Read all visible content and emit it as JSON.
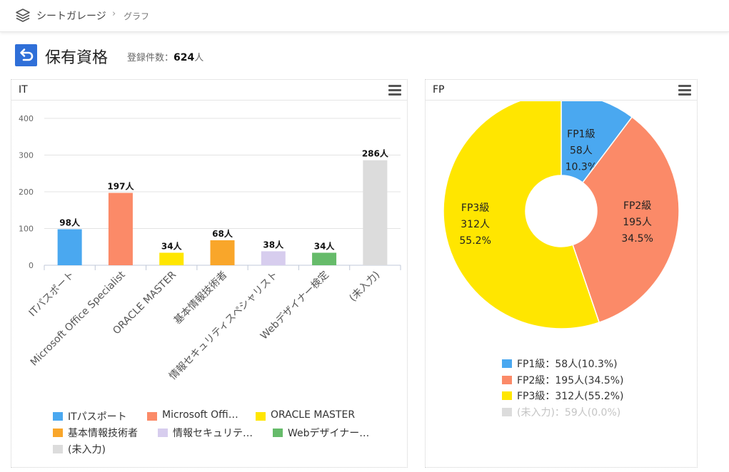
{
  "header": {
    "app_name": "シートガレージ",
    "separator": "›",
    "breadcrumb_current": "グラフ"
  },
  "page": {
    "title": "保有資格",
    "count_label": "登録件数：",
    "count_value": "624",
    "count_unit": "人"
  },
  "panels": {
    "it": {
      "title": "IT"
    },
    "fp": {
      "title": "FP"
    }
  },
  "colors": {
    "accent": "#2f6fd8",
    "blue": "#4aa8f0",
    "salmon": "#fb8a68",
    "yellow": "#ffe600",
    "orange": "#f9a62a",
    "lavender": "#d7cdee",
    "green": "#66bb6a",
    "gray": "#dcdcdc"
  },
  "chart_data": [
    {
      "type": "bar",
      "categories": [
        "ITパスポート",
        "Microsoft Office Specialist",
        "ORACLE MASTER",
        "基本情報技術者",
        "情報セキュリティスペシャリスト",
        "Webデザイナー検定",
        "(未入力)"
      ],
      "values": [
        98,
        197,
        34,
        68,
        38,
        34,
        286
      ],
      "data_labels": [
        "98人",
        "197人",
        "34人",
        "68人",
        "38人",
        "34人",
        "286人"
      ],
      "bar_colors": [
        "#4aa8f0",
        "#fb8a68",
        "#ffe600",
        "#f9a62a",
        "#d7cdee",
        "#66bb6a",
        "#dcdcdc"
      ],
      "ylim": [
        0,
        400
      ],
      "yticks": [
        "0",
        "100",
        "200",
        "300",
        "400"
      ],
      "grid": true,
      "legend_position": "bottom",
      "legend": [
        "ITパスポート",
        "Microsoft Offi…",
        "ORACLE MASTER",
        "基本情報技術者",
        "情報セキュリテ…",
        "Webデザイナー…",
        "(未入力)"
      ]
    },
    {
      "type": "pie",
      "donut": true,
      "categories": [
        "FP1級",
        "FP2級",
        "FP3級",
        "(未入力)"
      ],
      "values": [
        58,
        195,
        312,
        59
      ],
      "percents": [
        "10.3%",
        "34.5%",
        "55.2%",
        "0.0%"
      ],
      "slice_labels": [
        [
          "FP1級",
          "58人",
          "10.3%"
        ],
        [
          "FP2級",
          "195人",
          "34.5%"
        ],
        [
          "FP3級",
          "312人",
          "55.2%"
        ]
      ],
      "colors": [
        "#4aa8f0",
        "#fb8a68",
        "#ffe600",
        "#dcdcdc"
      ],
      "legend_position": "bottom",
      "legend": [
        "FP1級：58人(10.3%)",
        "FP2級：195人(34.5%)",
        "FP3級：312人(55.2%)",
        "(未入力)：59人(0.0%)"
      ],
      "legend_hidden": [
        false,
        false,
        false,
        true
      ]
    }
  ]
}
